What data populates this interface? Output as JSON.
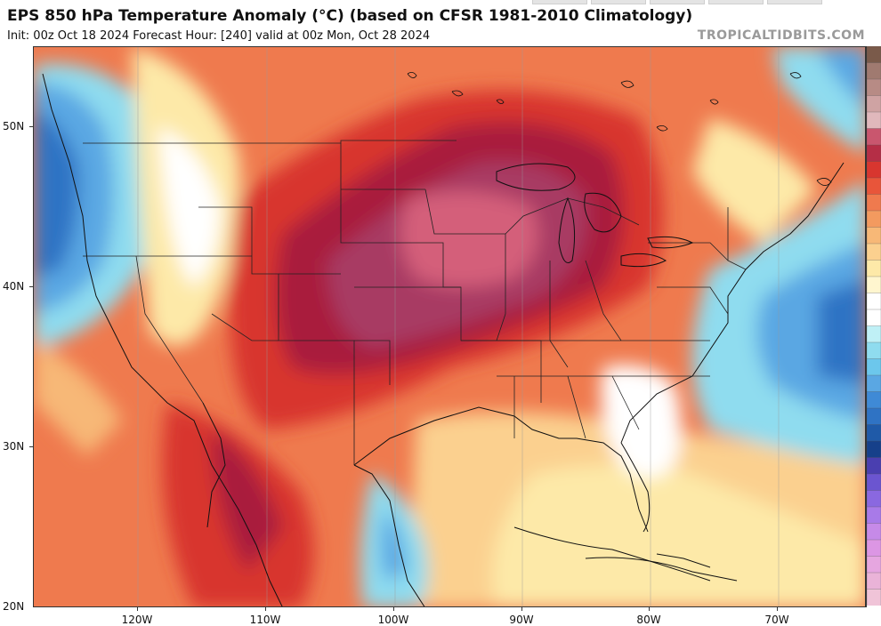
{
  "header": {
    "title": "EPS 850 hPa Temperature Anomaly (°C) (based on CFSR 1981-2010 Climatology)",
    "subtitle": "Init: 00z Oct 18 2024   Forecast Hour: [240]   valid at 00z Mon, Oct 28 2024",
    "credit": "TROPICALTIDBITS.COM"
  },
  "axes": {
    "y_labels": [
      "50N",
      "40N",
      "30N",
      "20N"
    ],
    "x_labels": [
      "120W",
      "110W",
      "100W",
      "90W",
      "80W",
      "70W"
    ]
  },
  "colors": {
    "cold_deep": "#2f73c4",
    "cold": "#5aa7e3",
    "cool": "#8fdcef",
    "neutral": "#ffffff",
    "warm_light": "#fde9a8",
    "warm": "#f7b877",
    "warm_mid": "#ef7a4e",
    "hot": "#d8362f",
    "hot_deep": "#a91f3c",
    "extreme": "#a83a63",
    "extreme_core": "#d45f7a"
  },
  "scale_colors": [
    "#7a5a4a",
    "#a07a70",
    "#b78b85",
    "#cfa3a3",
    "#e0b8bc",
    "#c9566e",
    "#b52e46",
    "#d8362f",
    "#e8553a",
    "#ef7a4e",
    "#f39a5f",
    "#f7b877",
    "#fbd08f",
    "#fde9a8",
    "#fff6cf",
    "#ffffff",
    "#ffffff",
    "#bff0f6",
    "#8fdcef",
    "#6cc7ec",
    "#5aa7e3",
    "#3f8ad6",
    "#2f73c4",
    "#1f5aa8",
    "#16408a",
    "#4a3fb0",
    "#6b55d0",
    "#8a68e0",
    "#a87ae8",
    "#c68ae8",
    "#dc96e4",
    "#e6a6e0",
    "#eab3d8",
    "#f0c4d8"
  ]
}
